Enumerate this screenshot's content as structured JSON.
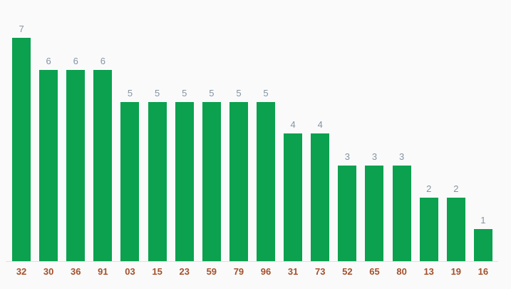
{
  "chart_data": {
    "type": "bar",
    "categories": [
      "32",
      "30",
      "36",
      "91",
      "03",
      "15",
      "23",
      "59",
      "79",
      "96",
      "31",
      "73",
      "52",
      "65",
      "80",
      "13",
      "19",
      "16"
    ],
    "values": [
      7,
      6,
      6,
      6,
      5,
      5,
      5,
      5,
      5,
      5,
      4,
      4,
      3,
      3,
      3,
      2,
      2,
      1
    ],
    "title": "",
    "xlabel": "",
    "ylabel": "",
    "ylim": [
      0,
      8
    ],
    "grid": false,
    "legend": "none",
    "annotations": "values shown above each bar",
    "colors": {
      "bar": "#0ba14f",
      "value_label": "#8494a4",
      "category_label": "#a5502b",
      "baseline": "#e0e0e0",
      "background": "#fafafa"
    }
  }
}
